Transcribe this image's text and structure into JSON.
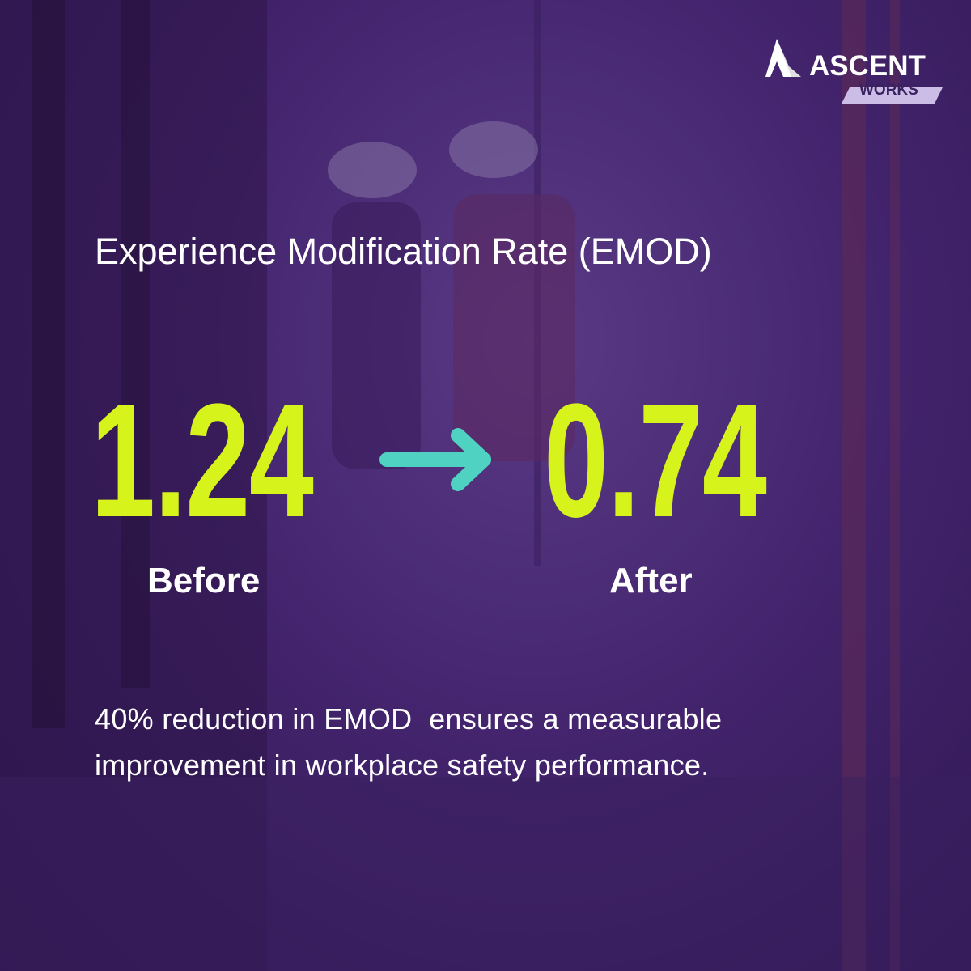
{
  "logo": {
    "name": "ASCENT",
    "tagline": "WORKS"
  },
  "title": "Experience Modification Rate (EMOD)",
  "before": {
    "value": "1.24",
    "label": "Before"
  },
  "after": {
    "value": "0.74",
    "label": "After"
  },
  "description": [
    "40% reduction in EMOD  ensures a measurable",
    "improvement in workplace safety performance."
  ]
}
